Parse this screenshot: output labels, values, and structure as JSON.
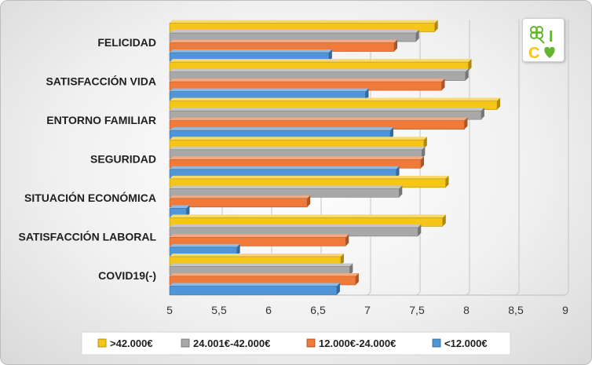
{
  "chart_data": {
    "type": "bar",
    "orientation": "horizontal",
    "categories": [
      "FELICIDAD",
      "SATISFACCIÓN VIDA",
      "ENTORNO FAMILIAR",
      "SEGURIDAD",
      "SITUACIÓN ECONÓMICA",
      "SATISFACCIÓN LABORAL",
      "COVID19(-)"
    ],
    "series": [
      {
        "name": ">42.000€",
        "color": "#f5c518",
        "values": [
          7.68,
          8.02,
          8.31,
          7.57,
          7.79,
          7.76,
          6.73
        ]
      },
      {
        "name": "24.001€-42.000€",
        "color": "#a8a8a8",
        "values": [
          7.49,
          7.99,
          8.15,
          7.55,
          7.32,
          7.51,
          6.82
        ]
      },
      {
        "name": "12.000€-24.000€",
        "color": "#f07a3a",
        "values": [
          7.27,
          7.75,
          7.98,
          7.54,
          6.39,
          6.78,
          6.88
        ]
      },
      {
        "name": "<12.000€",
        "color": "#4f95d8",
        "values": [
          6.61,
          6.98,
          7.23,
          7.29,
          5.17,
          5.68,
          6.69
        ]
      }
    ],
    "xlim": [
      5,
      9
    ],
    "xticks": [
      "5",
      "5,5",
      "6",
      "6,5",
      "7",
      "7,5",
      "8",
      "8,5",
      "9"
    ],
    "grid": true,
    "legend_position": "bottom",
    "title": "",
    "xlabel": "",
    "ylabel": ""
  },
  "logo": {
    "letters": [
      "I",
      "C"
    ],
    "icons": [
      "clover-icon",
      "heart-icon"
    ],
    "colors": {
      "green": "#63b52f"
    }
  }
}
